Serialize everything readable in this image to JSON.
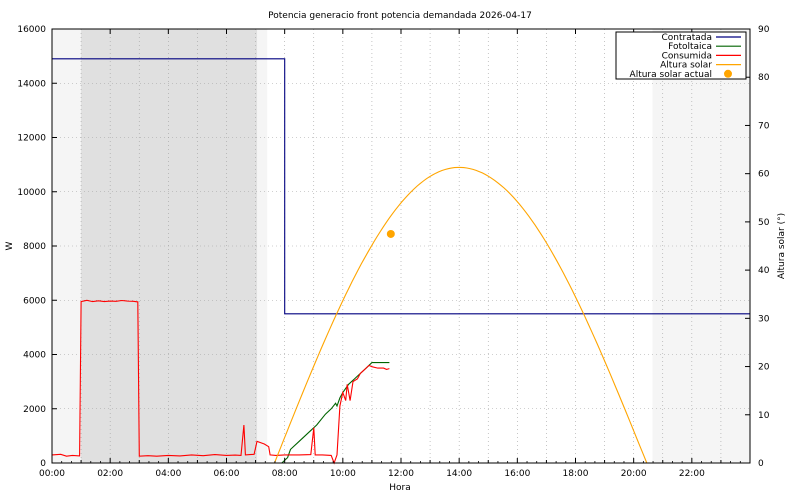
{
  "chart_data": {
    "type": "line",
    "title": "Potencia generacio front potencia demandada 2026-04-17",
    "xlabel": "Hora",
    "ylabel": "W",
    "y2label": "Altura solar (°)",
    "xlim": [
      0,
      24
    ],
    "ylim": [
      0,
      16000
    ],
    "y2lim": [
      0,
      90
    ],
    "grid": true,
    "legend_position": "top-right",
    "x_ticks": [
      {
        "value": 0,
        "label": "00:00"
      },
      {
        "value": 2,
        "label": "02:00"
      },
      {
        "value": 4,
        "label": "04:00"
      },
      {
        "value": 6,
        "label": "06:00"
      },
      {
        "value": 8,
        "label": "08:00"
      },
      {
        "value": 10,
        "label": "10:00"
      },
      {
        "value": 12,
        "label": "12:00"
      },
      {
        "value": 14,
        "label": "14:00"
      },
      {
        "value": 16,
        "label": "16:00"
      },
      {
        "value": 18,
        "label": "18:00"
      },
      {
        "value": 20,
        "label": "20:00"
      },
      {
        "value": 22,
        "label": "22:00"
      }
    ],
    "y_ticks": [
      {
        "value": 0,
        "label": "0"
      },
      {
        "value": 2000,
        "label": "2000"
      },
      {
        "value": 4000,
        "label": "4000"
      },
      {
        "value": 6000,
        "label": "6000"
      },
      {
        "value": 8000,
        "label": "8000"
      },
      {
        "value": 10000,
        "label": "10000"
      },
      {
        "value": 12000,
        "label": "12000"
      },
      {
        "value": 14000,
        "label": "14000"
      },
      {
        "value": 16000,
        "label": "16000"
      }
    ],
    "y2_ticks": [
      {
        "value": 0,
        "label": "0"
      },
      {
        "value": 10,
        "label": "10"
      },
      {
        "value": 20,
        "label": "20"
      },
      {
        "value": 30,
        "label": "30"
      },
      {
        "value": 40,
        "label": "40"
      },
      {
        "value": 50,
        "label": "50"
      },
      {
        "value": 60,
        "label": "60"
      },
      {
        "value": 70,
        "label": "70"
      },
      {
        "value": 80,
        "label": "80"
      },
      {
        "value": 90,
        "label": "90"
      }
    ],
    "bands": [
      {
        "from": 0,
        "to": 7.4,
        "color": "#f5f5f5"
      },
      {
        "from": 1.0,
        "to": 7.05,
        "color": "#e0e0e0"
      },
      {
        "from": 20.65,
        "to": 24,
        "color": "#f5f5f5"
      }
    ],
    "series": [
      {
        "name": "Contratada",
        "color": "#000080",
        "axis": "y",
        "step": true,
        "points": [
          [
            0,
            14900
          ],
          [
            8.0,
            14900
          ],
          [
            8.0,
            5500
          ],
          [
            24,
            5500
          ]
        ]
      },
      {
        "name": "Fotoltaica",
        "color": "#006400",
        "axis": "y",
        "points": [
          [
            7.9,
            0
          ],
          [
            8.1,
            200
          ],
          [
            8.2,
            500
          ],
          [
            8.5,
            800
          ],
          [
            8.8,
            1100
          ],
          [
            9.1,
            1400
          ],
          [
            9.4,
            1800
          ],
          [
            9.6,
            2000
          ],
          [
            9.75,
            2200
          ],
          [
            9.8,
            2100
          ],
          [
            9.9,
            2400
          ],
          [
            10.0,
            2600
          ],
          [
            10.2,
            2900
          ],
          [
            10.4,
            3100
          ],
          [
            10.6,
            3300
          ],
          [
            10.8,
            3500
          ],
          [
            11.0,
            3700
          ],
          [
            11.2,
            3700
          ],
          [
            11.6,
            3700
          ]
        ]
      },
      {
        "name": "Consumida",
        "color": "#ff0000",
        "axis": "y",
        "points": [
          [
            0,
            300
          ],
          [
            0.3,
            320
          ],
          [
            0.5,
            250
          ],
          [
            0.7,
            280
          ],
          [
            0.95,
            260
          ],
          [
            1.0,
            5950
          ],
          [
            1.2,
            6000
          ],
          [
            1.4,
            5950
          ],
          [
            1.6,
            5980
          ],
          [
            1.8,
            5950
          ],
          [
            2.0,
            5970
          ],
          [
            2.2,
            5960
          ],
          [
            2.4,
            5990
          ],
          [
            2.6,
            5970
          ],
          [
            2.8,
            5960
          ],
          [
            2.95,
            5940
          ],
          [
            3.0,
            250
          ],
          [
            3.3,
            270
          ],
          [
            3.6,
            250
          ],
          [
            4.0,
            280
          ],
          [
            4.4,
            260
          ],
          [
            4.8,
            300
          ],
          [
            5.2,
            270
          ],
          [
            5.6,
            310
          ],
          [
            6.0,
            280
          ],
          [
            6.3,
            290
          ],
          [
            6.5,
            280
          ],
          [
            6.6,
            1400
          ],
          [
            6.65,
            300
          ],
          [
            6.8,
            310
          ],
          [
            6.95,
            320
          ],
          [
            7.05,
            800
          ],
          [
            7.3,
            700
          ],
          [
            7.45,
            600
          ],
          [
            7.5,
            300
          ],
          [
            7.7,
            280
          ],
          [
            8.0,
            300
          ],
          [
            8.5,
            300
          ],
          [
            8.9,
            310
          ],
          [
            9.0,
            1300
          ],
          [
            9.05,
            300
          ],
          [
            9.3,
            300
          ],
          [
            9.6,
            280
          ],
          [
            9.7,
            0
          ],
          [
            9.8,
            300
          ],
          [
            9.9,
            2100
          ],
          [
            10.0,
            2600
          ],
          [
            10.1,
            2300
          ],
          [
            10.15,
            2900
          ],
          [
            10.25,
            2300
          ],
          [
            10.35,
            3000
          ],
          [
            10.5,
            3100
          ],
          [
            10.6,
            3300
          ],
          [
            10.7,
            3400
          ],
          [
            10.8,
            3500
          ],
          [
            10.9,
            3600
          ],
          [
            11.0,
            3550
          ],
          [
            11.2,
            3500
          ],
          [
            11.4,
            3500
          ],
          [
            11.5,
            3450
          ],
          [
            11.6,
            3480
          ]
        ]
      },
      {
        "name": "Altura solar",
        "color": "#ffa500",
        "axis": "y2",
        "curve": "solar",
        "start": 7.65,
        "end": 20.45,
        "peak_time": 14.0,
        "peak_value": 61.3
      }
    ],
    "markers": [
      {
        "name": "Altura solar actual",
        "color": "#ffa500",
        "axis": "y2",
        "x": 11.65,
        "y": 47.5
      }
    ]
  }
}
